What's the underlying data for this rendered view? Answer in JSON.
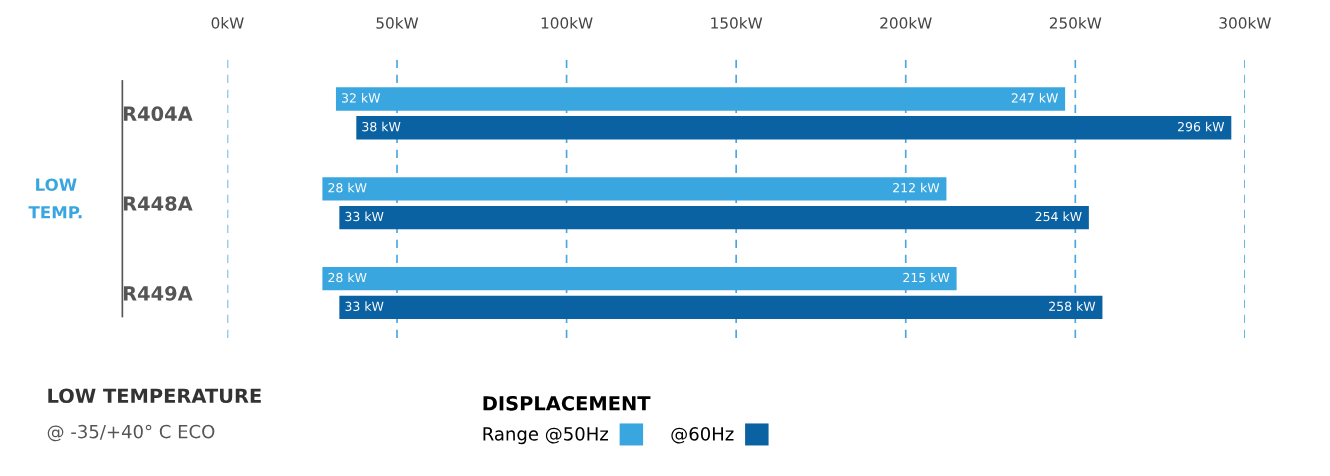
{
  "chart_data": {
    "type": "bar",
    "orientation": "horizontal",
    "categories": [
      "R404A",
      "R448A",
      "R449A"
    ],
    "series": [
      {
        "name": "Range @50Hz",
        "color": "#3aa6df",
        "base": [
          32,
          28,
          28
        ],
        "values": [
          215,
          184,
          187
        ],
        "value_labels": [
          "247 kW",
          "212 kW",
          "215 kW"
        ]
      },
      {
        "name": "@60Hz",
        "color": "#0b62a3",
        "base": [
          38,
          33,
          33
        ],
        "values": [
          258,
          221,
          225
        ],
        "value_labels": [
          "296 kW",
          "254 kW",
          "258 kW"
        ]
      }
    ],
    "xlim": [
      0,
      300
    ],
    "xticks": [
      {
        "value": 0,
        "label": "0kW"
      },
      {
        "value": 50,
        "label": "50kW"
      },
      {
        "value": 100,
        "label": "100kW"
      },
      {
        "value": 150,
        "label": "150kW"
      },
      {
        "value": 200,
        "label": "200kW"
      },
      {
        "value": 250,
        "label": "250kW"
      },
      {
        "value": 300,
        "label": "300kW"
      }
    ],
    "grid": "x",
    "line_style": "dashed",
    "legend": "bottom",
    "legend_title": "DISPLACEMENT",
    "annotations": [
      "LOW\nTEMP.",
      "LOW TEMPERATURE",
      "@ -35/+40° C ECO",
      {
        "text": "32 kW",
        "x": 32,
        "y": "R404A"
      },
      {
        "text": "38 kW",
        "x": 38,
        "y": "R404A"
      },
      {
        "text": "28 kW",
        "x": 28,
        "y": "R448A"
      },
      {
        "text": "33 kW",
        "x": 33,
        "y": "R448A"
      },
      {
        "text": "28 kW",
        "x": 28,
        "y": "R449A"
      },
      {
        "text": "33 kW",
        "x": 33,
        "y": "R449A"
      }
    ]
  }
}
